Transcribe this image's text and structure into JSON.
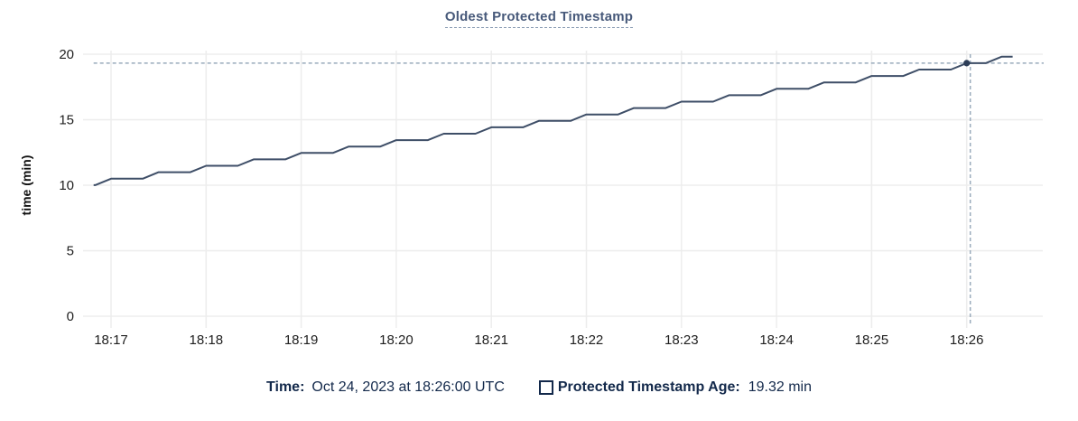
{
  "title": "Oldest Protected Timestamp",
  "tooltip_footer": {
    "time_label": "Time:",
    "time_value": "Oct 24, 2023 at 18:26:00 UTC",
    "series_label": "Protected Timestamp Age:",
    "series_value": "19.32 min"
  },
  "chart_data": {
    "type": "line",
    "title": "Oldest Protected Timestamp",
    "xlabel": "",
    "ylabel": "time (min)",
    "ylim": [
      0,
      20
    ],
    "y_ticks": [
      0,
      5,
      10,
      15,
      20
    ],
    "x_tick_labels": [
      "18:17",
      "18:18",
      "18:19",
      "18:20",
      "18:21",
      "18:22",
      "18:23",
      "18:24",
      "18:25",
      "18:26"
    ],
    "x_tick_interval_seconds": 60,
    "grid": true,
    "legend_position": "bottom",
    "series": [
      {
        "name": "Protected Timestamp Age",
        "unit": "min",
        "points": [
          [
            -11,
            10.01
          ],
          [
            -10,
            10.01
          ],
          [
            0,
            10.5
          ],
          [
            20,
            10.5
          ],
          [
            30,
            10.99
          ],
          [
            50,
            10.99
          ],
          [
            60,
            11.48
          ],
          [
            80,
            11.48
          ],
          [
            90,
            11.97
          ],
          [
            110,
            11.97
          ],
          [
            120,
            12.46
          ],
          [
            140,
            12.46
          ],
          [
            150,
            12.95
          ],
          [
            170,
            12.95
          ],
          [
            180,
            13.44
          ],
          [
            200,
            13.44
          ],
          [
            210,
            13.93
          ],
          [
            230,
            13.93
          ],
          [
            240,
            14.42
          ],
          [
            260,
            14.42
          ],
          [
            270,
            14.91
          ],
          [
            290,
            14.91
          ],
          [
            300,
            15.4
          ],
          [
            320,
            15.4
          ],
          [
            330,
            15.89
          ],
          [
            350,
            15.89
          ],
          [
            360,
            16.38
          ],
          [
            380,
            16.38
          ],
          [
            390,
            16.87
          ],
          [
            410,
            16.87
          ],
          [
            420,
            17.36
          ],
          [
            440,
            17.36
          ],
          [
            450,
            17.85
          ],
          [
            470,
            17.85
          ],
          [
            480,
            18.34
          ],
          [
            500,
            18.34
          ],
          [
            510,
            18.83
          ],
          [
            530,
            18.83
          ],
          [
            540,
            19.32
          ],
          [
            552,
            19.32
          ],
          [
            562,
            19.81
          ],
          [
            569,
            19.81
          ]
        ],
        "points_time_unit": "seconds_after_18:17:00"
      }
    ],
    "hover_point": {
      "time": "18:26:00",
      "t_seconds": 540,
      "value": 19.32,
      "value_label": "19.32 min"
    },
    "colors": {
      "line": "#3e4e67",
      "dot": "#2c3d57",
      "grid": "#ededed",
      "crosshair": "#9aabbc",
      "title": "#47597a",
      "tick_text": "#1e1e1e",
      "axis_title_text": "#111111",
      "legend_text": "#13294b"
    }
  }
}
